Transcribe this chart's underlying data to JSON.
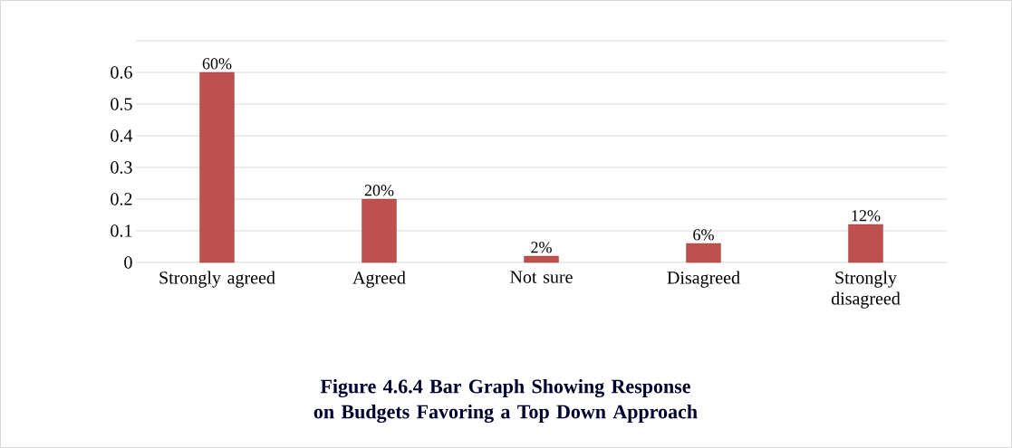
{
  "chart_data": {
    "type": "bar",
    "title": "Figure 4.6.4 Bar Graph Showing Response on Budgets Favoring a Top Down Approach",
    "categories": [
      "Strongly agreed",
      "Agreed",
      "Not sure",
      "Disagreed",
      "Strongly disagreed"
    ],
    "values": [
      0.6,
      0.2,
      0.02,
      0.06,
      0.12
    ],
    "value_labels": [
      "60%",
      "20%",
      "2%",
      "6%",
      "12%"
    ],
    "color": "#c0504d",
    "ylim": [
      0,
      0.7
    ],
    "yticks": [
      0,
      0.1,
      0.2,
      0.3,
      0.4,
      0.5,
      0.6,
      {
        "value": 0.7,
        "label": null
      }
    ],
    "grid": "y"
  }
}
